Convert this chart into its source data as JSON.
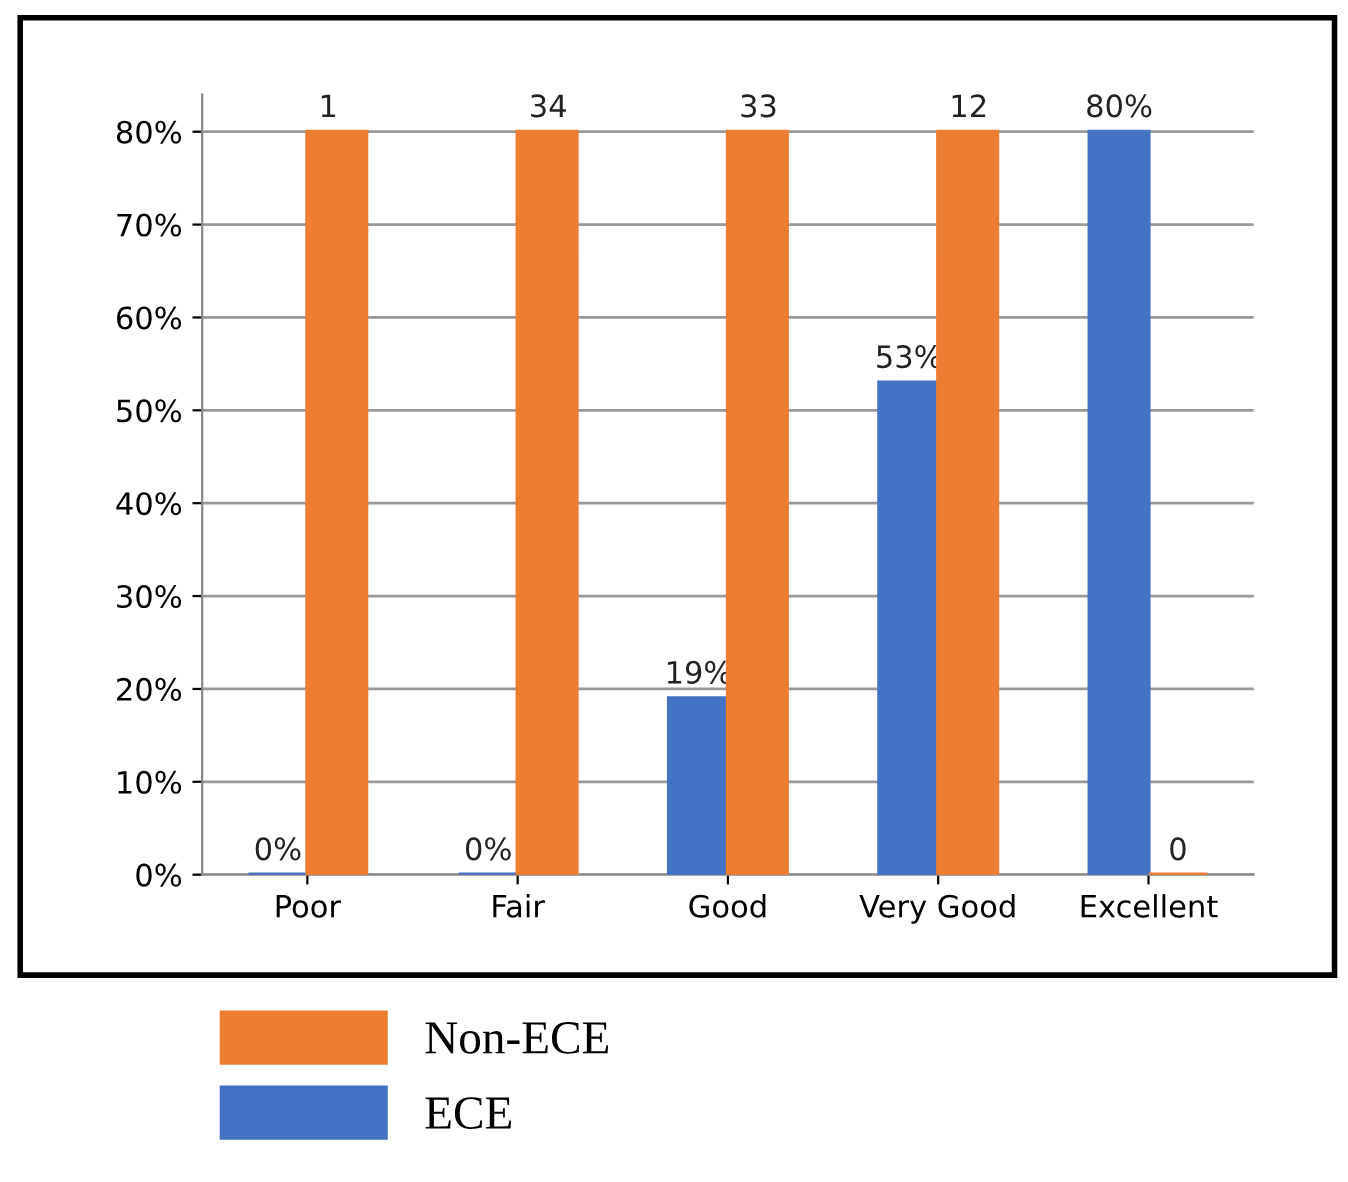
{
  "chart_data": {
    "type": "bar",
    "categories": [
      "Poor",
      "Fair",
      "Good",
      "Very Good",
      "Excellent"
    ],
    "series": [
      {
        "name": "ECE",
        "color": "#4472c4",
        "values": [
          0,
          0,
          19,
          53,
          80
        ],
        "value_labels": [
          "0%",
          "0%",
          "19%",
          "53%",
          "80%"
        ]
      },
      {
        "name": "Non-ECE",
        "color": "#ed7d31",
        "values": [
          80,
          80,
          80,
          80,
          0
        ],
        "value_labels": [
          null,
          null,
          null,
          null,
          "0"
        ]
      }
    ],
    "annotations": [
      {
        "text": "1",
        "x": "Poor",
        "y": 80
      },
      {
        "text": "34",
        "x": "Fair",
        "y": 80
      },
      {
        "text": "33",
        "x": "Good",
        "y": 80
      },
      {
        "text": "12",
        "x": "Very Good",
        "y": 80
      }
    ],
    "ylim": [
      0,
      84
    ],
    "yticks": [
      {
        "value": 0,
        "label": "0%"
      },
      {
        "value": 10,
        "label": "10%"
      },
      {
        "value": 20,
        "label": "20%"
      },
      {
        "value": 30,
        "label": "30%"
      },
      {
        "value": 40,
        "label": "40%"
      },
      {
        "value": 50,
        "label": "50%"
      },
      {
        "value": 60,
        "label": "60%"
      },
      {
        "value": 70,
        "label": "70%"
      },
      {
        "value": 80,
        "label": "80%"
      }
    ],
    "grid": "y",
    "legend": "bottom"
  }
}
